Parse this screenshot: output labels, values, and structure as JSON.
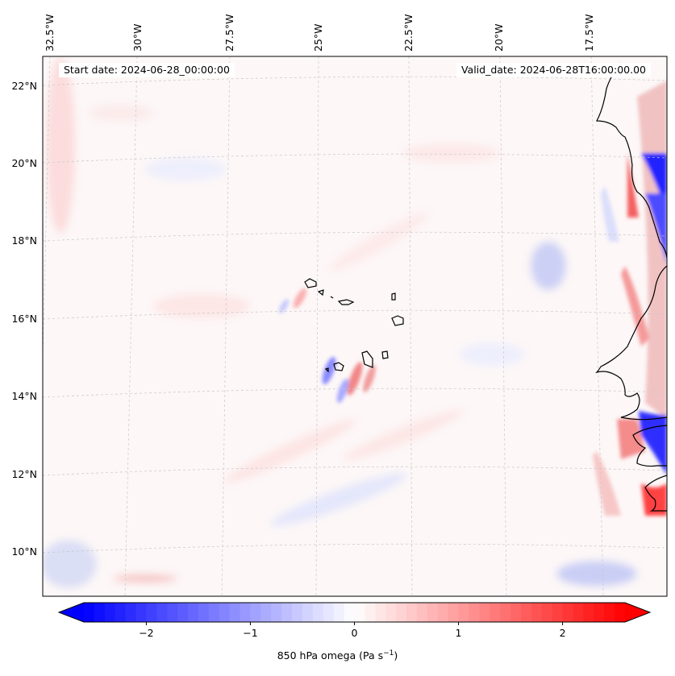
{
  "header": {
    "start_date_label": "Start date: 2024-06-28_00:00:00",
    "valid_date_label": "Valid_date: 2024-06-28T16:00:00.00"
  },
  "axes": {
    "lon_labels": [
      "32.5°W",
      "30°W",
      "27.5°W",
      "25°W",
      "22.5°W",
      "20°W",
      "17.5°W"
    ],
    "lat_labels": [
      "22°N",
      "20°N",
      "18°N",
      "16°N",
      "14°N",
      "12°N",
      "10°N"
    ]
  },
  "colorbar": {
    "tick_labels": [
      "−2",
      "−1",
      "0",
      "1",
      "2"
    ],
    "tick_values": [
      -2,
      -1,
      0,
      1,
      2
    ],
    "range": [
      -2.6,
      2.6
    ],
    "label_main": "850 hPa omega (Pa s",
    "label_sup": "−1",
    "label_end": ")",
    "colormap": "bwr",
    "low_color": "#0000ff",
    "mid_color": "#ffffff",
    "high_color": "#ff0000"
  }
}
